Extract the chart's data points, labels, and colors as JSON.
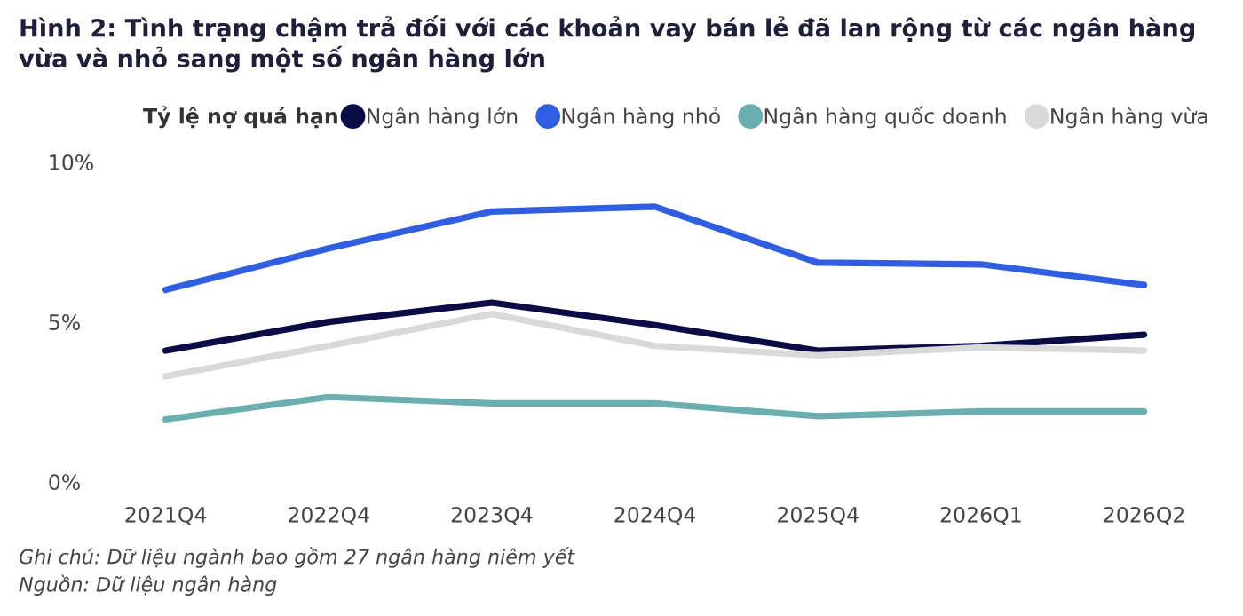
{
  "chart_data": {
    "type": "line",
    "title": "Hình 2: Tình trạng chậm trả đối với các khoản vay bán lẻ đã lan rộng từ các ngân hàng vừa và nhỏ sang một số ngân hàng lớn",
    "legend_title": "Tỷ lệ nợ quá hạn",
    "categories": [
      "2021Q4",
      "2022Q4",
      "2023Q4",
      "2024Q4",
      "2025Q4",
      "2026Q1",
      "2026Q2"
    ],
    "series": [
      {
        "name": "Ngân hàng lớn",
        "color": "#0b0b45",
        "values": [
          4.1,
          5.0,
          5.6,
          4.9,
          4.1,
          4.25,
          4.6
        ]
      },
      {
        "name": "Ngân hàng nhỏ",
        "color": "#2f5fe0",
        "values": [
          6.0,
          7.3,
          8.45,
          8.6,
          6.85,
          6.8,
          6.15
        ]
      },
      {
        "name": "Ngân hàng quốc doanh",
        "color": "#6aaeb0",
        "values": [
          1.95,
          2.65,
          2.45,
          2.45,
          2.05,
          2.2,
          2.2
        ]
      },
      {
        "name": "Ngân hàng vừa",
        "color": "#d9d9d9",
        "values": [
          3.3,
          4.25,
          5.25,
          4.25,
          3.95,
          4.2,
          4.1
        ]
      }
    ],
    "ylim": [
      0,
      10
    ],
    "yticks": [
      {
        "value": 0,
        "label": "0%"
      },
      {
        "value": 5,
        "label": "5%"
      },
      {
        "value": 10,
        "label": "10%"
      }
    ],
    "grid": false,
    "legend": "top",
    "marker": "none",
    "line_style": "solid",
    "annotations": [
      "Ghi chú: Dữ liệu ngành bao gồm 27 ngân hàng niêm yết",
      "Nguồn: Dữ liệu ngân hàng"
    ]
  }
}
